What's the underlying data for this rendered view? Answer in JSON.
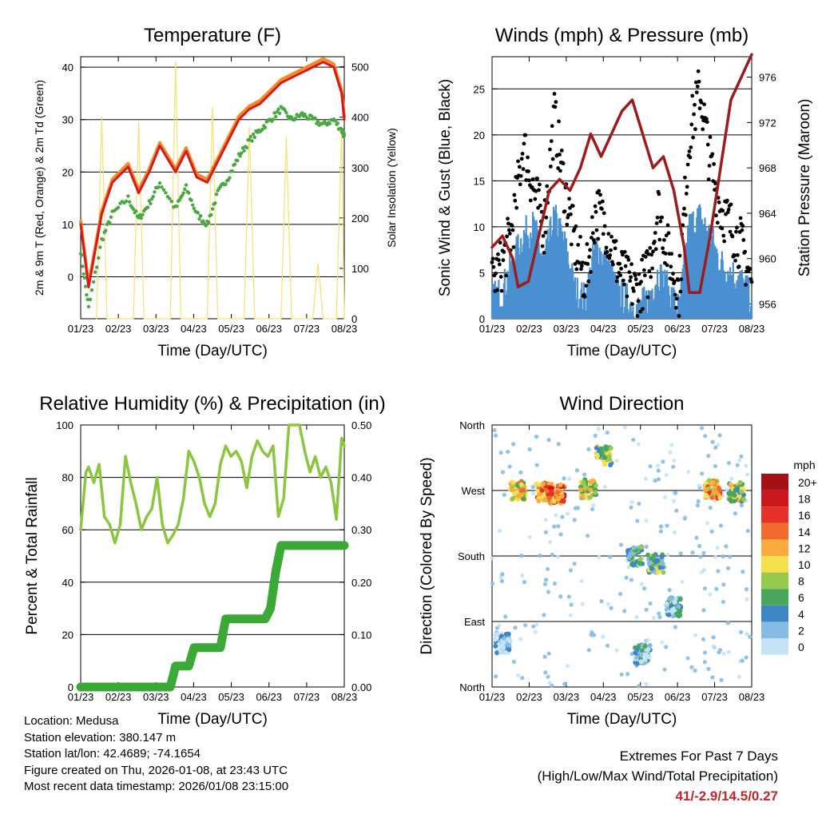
{
  "chart_data": [
    {
      "type": "line",
      "title": "Temperature (F)",
      "xlabel": "Time (Day/UTC)",
      "ylabel": "2m & 9m T (Red, Orange) & 2m Td (Green)",
      "ylabel_right": "Solar Insolation (Yellow)",
      "x_ticks": [
        "01/23",
        "02/23",
        "03/23",
        "04/23",
        "05/23",
        "06/23",
        "07/23",
        "08/23"
      ],
      "ylim": [
        -8,
        42
      ],
      "y_ticks": [
        "0",
        "10",
        "20",
        "30",
        "40"
      ],
      "ylim_right": [
        0,
        520
      ],
      "y_ticks_right": [
        "0",
        "100",
        "200",
        "300",
        "400",
        "500"
      ],
      "series": [
        {
          "name": "2m T",
          "color": "#d7191c",
          "x": [
            0,
            0.03,
            0.08,
            0.12,
            0.18,
            0.22,
            0.26,
            0.3,
            0.36,
            0.4,
            0.44,
            0.48,
            0.52,
            0.56,
            0.6,
            0.64,
            0.68,
            0.72,
            0.76,
            0.8,
            0.84,
            0.88,
            0.92,
            0.96,
            0.99,
            1.0
          ],
          "y": [
            10,
            -2,
            12,
            18,
            21,
            16,
            20,
            25,
            20,
            24,
            19,
            18,
            22,
            26,
            30,
            32,
            33,
            35,
            37,
            38,
            39,
            40,
            41,
            40,
            35,
            30
          ]
        },
        {
          "name": "2m Td",
          "color": "#4aa842",
          "x": [
            0,
            0.03,
            0.08,
            0.12,
            0.18,
            0.22,
            0.26,
            0.3,
            0.36,
            0.4,
            0.44,
            0.48,
            0.52,
            0.56,
            0.6,
            0.64,
            0.68,
            0.72,
            0.76,
            0.8,
            0.84,
            0.88,
            0.92,
            0.96,
            0.99,
            1.0
          ],
          "y": [
            5,
            -6,
            7,
            12,
            15,
            11,
            14,
            18,
            13,
            17,
            12,
            10,
            16,
            19,
            23,
            26,
            28,
            30,
            32,
            30,
            31,
            30,
            29,
            30,
            28,
            27
          ]
        },
        {
          "name": "Solar Insolation",
          "color": "#f6e27a",
          "x": [
            0.06,
            0.08,
            0.1,
            0.2,
            0.22,
            0.24,
            0.34,
            0.36,
            0.38,
            0.48,
            0.5,
            0.52,
            0.62,
            0.64,
            0.66,
            0.76,
            0.78,
            0.8,
            0.88,
            0.9,
            0.92,
            0.97,
            0.99,
            1.0
          ],
          "y": [
            0,
            400,
            0,
            0,
            390,
            0,
            0,
            510,
            0,
            0,
            420,
            0,
            0,
            380,
            0,
            0,
            360,
            0,
            0,
            110,
            0,
            0,
            380,
            0
          ]
        }
      ]
    },
    {
      "type": "scatter",
      "title": "Winds (mph) & Pressure (mb)",
      "xlabel": "Time (Day/UTC)",
      "ylabel": "Sonic Wind & Gust (Blue, Black)",
      "ylabel_right": "Station Pressure (Maroon)",
      "x_ticks": [
        "01/23",
        "02/23",
        "03/23",
        "04/23",
        "05/23",
        "06/23",
        "07/23",
        "08/23"
      ],
      "ylim": [
        0,
        28.5
      ],
      "y_ticks": [
        "0",
        "5",
        "10",
        "15",
        "20",
        "25"
      ],
      "ylim_right": [
        954.7,
        977.8
      ],
      "y_ticks_right": [
        "956",
        "960",
        "964",
        "968",
        "972",
        "976"
      ],
      "series": [
        {
          "name": "Sonic Wind",
          "color": "#4a90d0",
          "x": [
            0,
            0.04,
            0.08,
            0.12,
            0.16,
            0.2,
            0.24,
            0.28,
            0.32,
            0.36,
            0.4,
            0.44,
            0.48,
            0.52,
            0.56,
            0.6,
            0.64,
            0.68,
            0.72,
            0.76,
            0.8,
            0.84,
            0.88,
            0.92,
            0.96,
            1.0
          ],
          "y": [
            2,
            3,
            6,
            9,
            10,
            6,
            11,
            8,
            3,
            2,
            8,
            6,
            3,
            2,
            1,
            2,
            5,
            3,
            1,
            10,
            11,
            9,
            6,
            5,
            4,
            2
          ]
        },
        {
          "name": "Gust",
          "color": "#000000",
          "x": [
            0,
            0.04,
            0.08,
            0.12,
            0.16,
            0.2,
            0.24,
            0.28,
            0.32,
            0.36,
            0.4,
            0.44,
            0.48,
            0.52,
            0.56,
            0.6,
            0.64,
            0.68,
            0.72,
            0.76,
            0.8,
            0.84,
            0.88,
            0.92,
            0.96,
            1.0
          ],
          "y": [
            4,
            6,
            10,
            19,
            14,
            10,
            22,
            14,
            8,
            4,
            12,
            10,
            6,
            4,
            3,
            5,
            12,
            7,
            3,
            20,
            25,
            17,
            12,
            10,
            8,
            4
          ]
        },
        {
          "name": "Station Pressure",
          "color": "#9c1c1c",
          "x": [
            0,
            0.04,
            0.08,
            0.1,
            0.14,
            0.18,
            0.22,
            0.26,
            0.3,
            0.34,
            0.38,
            0.42,
            0.46,
            0.5,
            0.54,
            0.58,
            0.62,
            0.66,
            0.7,
            0.74,
            0.76,
            0.8,
            0.84,
            0.88,
            0.92,
            0.96,
            1.0
          ],
          "y": [
            961,
            962,
            960,
            957.5,
            958,
            962,
            966,
            967,
            966,
            968,
            971,
            969,
            971,
            973,
            974,
            971,
            968,
            969,
            966,
            961,
            957,
            957,
            962,
            968,
            974,
            976,
            978
          ]
        }
      ]
    },
    {
      "type": "line",
      "title": "Relative Humidity (%) & Precipitation (in)",
      "xlabel": "Time (Day/UTC)",
      "ylabel": "Percent & Total Rainfall",
      "x_ticks": [
        "01/23",
        "02/23",
        "03/23",
        "04/23",
        "05/23",
        "06/23",
        "07/23",
        "08/23"
      ],
      "ylim": [
        0,
        100
      ],
      "y_ticks": [
        "0",
        "20",
        "40",
        "60",
        "80",
        "100"
      ],
      "ylim_right": [
        0,
        0.5
      ],
      "y_ticks_right": [
        "0.00",
        "0.10",
        "0.20",
        "0.30",
        "0.40",
        "0.50"
      ],
      "series": [
        {
          "name": "Relative Humidity",
          "color": "#8cc63f",
          "x": [
            0,
            0.02,
            0.03,
            0.05,
            0.07,
            0.09,
            0.11,
            0.13,
            0.15,
            0.17,
            0.19,
            0.21,
            0.23,
            0.25,
            0.27,
            0.29,
            0.31,
            0.33,
            0.35,
            0.37,
            0.39,
            0.41,
            0.43,
            0.45,
            0.47,
            0.49,
            0.51,
            0.53,
            0.55,
            0.57,
            0.59,
            0.61,
            0.63,
            0.65,
            0.67,
            0.69,
            0.71,
            0.73,
            0.75,
            0.77,
            0.79,
            0.81,
            0.83,
            0.85,
            0.87,
            0.89,
            0.91,
            0.93,
            0.95,
            0.97,
            0.99,
            1.0
          ],
          "y": [
            60,
            82,
            84,
            78,
            85,
            65,
            62,
            55,
            62,
            88,
            78,
            70,
            60,
            65,
            68,
            80,
            62,
            55,
            58,
            62,
            72,
            90,
            86,
            80,
            70,
            65,
            70,
            85,
            92,
            88,
            90,
            86,
            76,
            88,
            94,
            90,
            88,
            92,
            65,
            72,
            100,
            100,
            100,
            90,
            82,
            88,
            80,
            84,
            78,
            64,
            95,
            92
          ]
        },
        {
          "name": "Total Precipitation",
          "color": "#3aa935",
          "x": [
            0,
            0.34,
            0.36,
            0.41,
            0.43,
            0.53,
            0.55,
            0.7,
            0.72,
            0.74,
            0.76,
            1.0
          ],
          "y": [
            0,
            0,
            0.04,
            0.04,
            0.075,
            0.075,
            0.13,
            0.13,
            0.15,
            0.22,
            0.27,
            0.27
          ]
        }
      ]
    },
    {
      "type": "scatter",
      "title": "Wind Direction",
      "xlabel": "Time (Day/UTC)",
      "ylabel": "Direction (Colored By Speed)",
      "x_ticks": [
        "01/23",
        "02/23",
        "03/23",
        "04/23",
        "05/23",
        "06/23",
        "07/23",
        "08/23"
      ],
      "ylim": [
        0,
        360
      ],
      "y_ticks": [
        "North",
        "East",
        "South",
        "West",
        "North"
      ],
      "colorbar_title": "mph",
      "colorbar_labels": [
        "20+",
        "18",
        "16",
        "14",
        "12",
        "10",
        "8",
        "6",
        "4",
        "2",
        "0"
      ],
      "colorbar_colors": [
        "#a50f15",
        "#cb181d",
        "#e8312b",
        "#f16a2b",
        "#fbaa3e",
        "#f4e04d",
        "#98c94a",
        "#49a75c",
        "#3f86c4",
        "#85bce6",
        "#c5e3f6"
      ],
      "clusters": [
        {
          "x": 0.1,
          "y": 270,
          "speed": 10
        },
        {
          "x": 0.2,
          "y": 268,
          "speed": 12
        },
        {
          "x": 0.25,
          "y": 265,
          "speed": 14
        },
        {
          "x": 0.37,
          "y": 272,
          "speed": 8
        },
        {
          "x": 0.43,
          "y": 318,
          "speed": 7
        },
        {
          "x": 0.55,
          "y": 180,
          "speed": 4
        },
        {
          "x": 0.63,
          "y": 170,
          "speed": 6
        },
        {
          "x": 0.58,
          "y": 45,
          "speed": 2
        },
        {
          "x": 0.85,
          "y": 272,
          "speed": 12
        },
        {
          "x": 0.94,
          "y": 268,
          "speed": 8
        },
        {
          "x": 0.04,
          "y": 60,
          "speed": 1
        },
        {
          "x": 0.7,
          "y": 110,
          "speed": 3
        }
      ]
    }
  ],
  "footer": {
    "location": "Location: Medusa",
    "elevation": "Station elevation: 380.147 m",
    "latlon": "Station lat/lon: 42.4689; -74.1654",
    "created": "Figure created on Thu, 2026-01-08, at 23:43 UTC",
    "recent": "Most recent data timestamp: 2026/01/08 23:15:00"
  },
  "extremes": {
    "line1": "Extremes For Past 7 Days",
    "line2": "(High/Low/Max Wind/Total Precipitation)",
    "values": "41/-2.9/14.5/0.27"
  }
}
